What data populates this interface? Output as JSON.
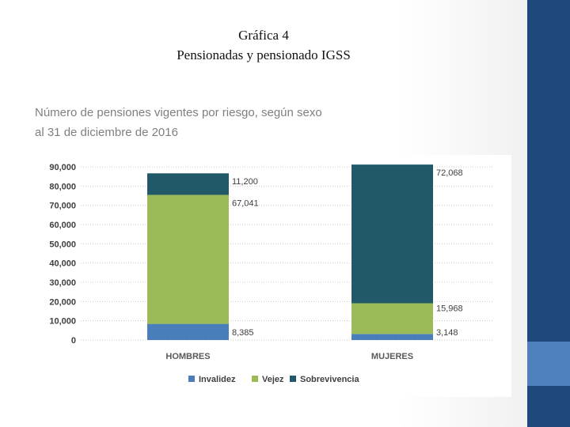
{
  "slide": {
    "title_line1": "Gráfica 4",
    "title_line2": "Pensionadas y pensionado IGSS"
  },
  "chart_data": {
    "type": "bar",
    "stacked": true,
    "title_line1": "Número de pensiones vigentes por riesgo, según sexo",
    "title_line2": "al 31 de diciembre de 2016",
    "categories": [
      "HOMBRES",
      "MUJERES"
    ],
    "series": [
      {
        "name": "Invalidez",
        "color": "#4a7ebb",
        "values": [
          8385,
          3148
        ],
        "labels": [
          "8,385",
          "3,148"
        ]
      },
      {
        "name": "Vejez",
        "color": "#9bbb59",
        "values": [
          67041,
          15968
        ],
        "labels": [
          "67,041",
          "15,968"
        ]
      },
      {
        "name": "Sobrevivencia",
        "color": "#215968",
        "values": [
          11200,
          72068
        ],
        "labels": [
          "11,200",
          "72,068"
        ]
      }
    ],
    "ylim": [
      0,
      90000
    ],
    "yticks": [
      "0",
      "10,000",
      "20,000",
      "30,000",
      "40,000",
      "50,000",
      "60,000",
      "70,000",
      "80,000",
      "90,000"
    ],
    "grid": true,
    "legend": "bottom"
  },
  "theme": {
    "sidebar_dark": "#1f497d",
    "sidebar_light": "#4f81bd"
  }
}
